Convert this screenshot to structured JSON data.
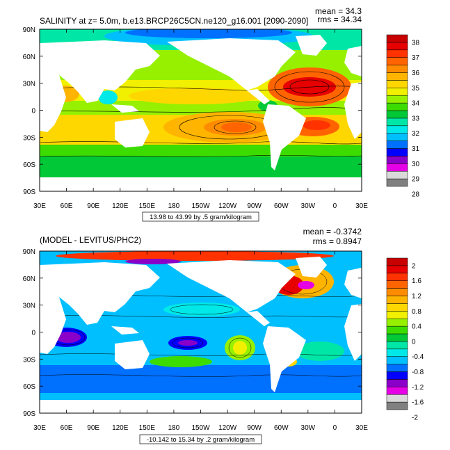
{
  "chart_data": [
    {
      "type": "heatmap",
      "title": "SALINITY at z=   5.0m, b.e13.BRCP26C5CN.ne120_g16.001 [2090-2090]",
      "stats": [
        "mean = 34.3",
        "rms = 34.34"
      ],
      "info": "13.98 to 43.99 by .5 gram/kilogram",
      "x_ticks": [
        "30E",
        "60E",
        "90E",
        "120E",
        "150E",
        "180",
        "150W",
        "120W",
        "90W",
        "60W",
        "30W",
        "0",
        "30E"
      ],
      "y_ticks": [
        "90N",
        "60N",
        "30N",
        "0",
        "30S",
        "60S",
        "90S"
      ],
      "xlim": [
        30,
        390
      ],
      "ylim": [
        -90,
        90
      ],
      "colorbar": {
        "labels": [
          "38",
          "37",
          "36",
          "35",
          "34",
          "33",
          "32",
          "31",
          "30",
          "29",
          "28"
        ],
        "colors": [
          "#808080",
          "#d9d9d9",
          "#e600e6",
          "#8a00c8",
          "#0000ff",
          "#0070ff",
          "#00bfff",
          "#00e8e8",
          "#00e6a6",
          "#00c837",
          "#3cdc00",
          "#96f000",
          "#f0f000",
          "#ffd700",
          "#ffb400",
          "#ff8c00",
          "#ff6400",
          "#ff3200",
          "#e60000",
          "#c80000"
        ]
      }
    },
    {
      "type": "heatmap",
      "title": "(MODEL - LEVITUS/PHC2)",
      "stats": [
        "mean = -0.3742",
        "rms = 0.8947"
      ],
      "info": "-10.142 to 15.34 by .2 gram/kilogram",
      "x_ticks": [
        "30E",
        "60E",
        "90E",
        "120E",
        "150E",
        "180",
        "150W",
        "120W",
        "90W",
        "60W",
        "30W",
        "0",
        "30E"
      ],
      "y_ticks": [
        "90N",
        "60N",
        "30N",
        "0",
        "30S",
        "60S",
        "90S"
      ],
      "xlim": [
        30,
        390
      ],
      "ylim": [
        -90,
        90
      ],
      "colorbar": {
        "labels": [
          "2",
          "1.6",
          "1.2",
          "0.8",
          "0.4",
          "0",
          "-0.4",
          "-0.8",
          "-1.2",
          "-1.6",
          "-2"
        ],
        "colors": [
          "#808080",
          "#d9d9d9",
          "#e600e6",
          "#8a00c8",
          "#0000ff",
          "#0070ff",
          "#00bfff",
          "#00e8e8",
          "#00e6a6",
          "#00c837",
          "#3cdc00",
          "#96f000",
          "#f0f000",
          "#ffd700",
          "#ffb400",
          "#ff8c00",
          "#ff6400",
          "#ff3200",
          "#e60000",
          "#c80000"
        ]
      }
    }
  ]
}
